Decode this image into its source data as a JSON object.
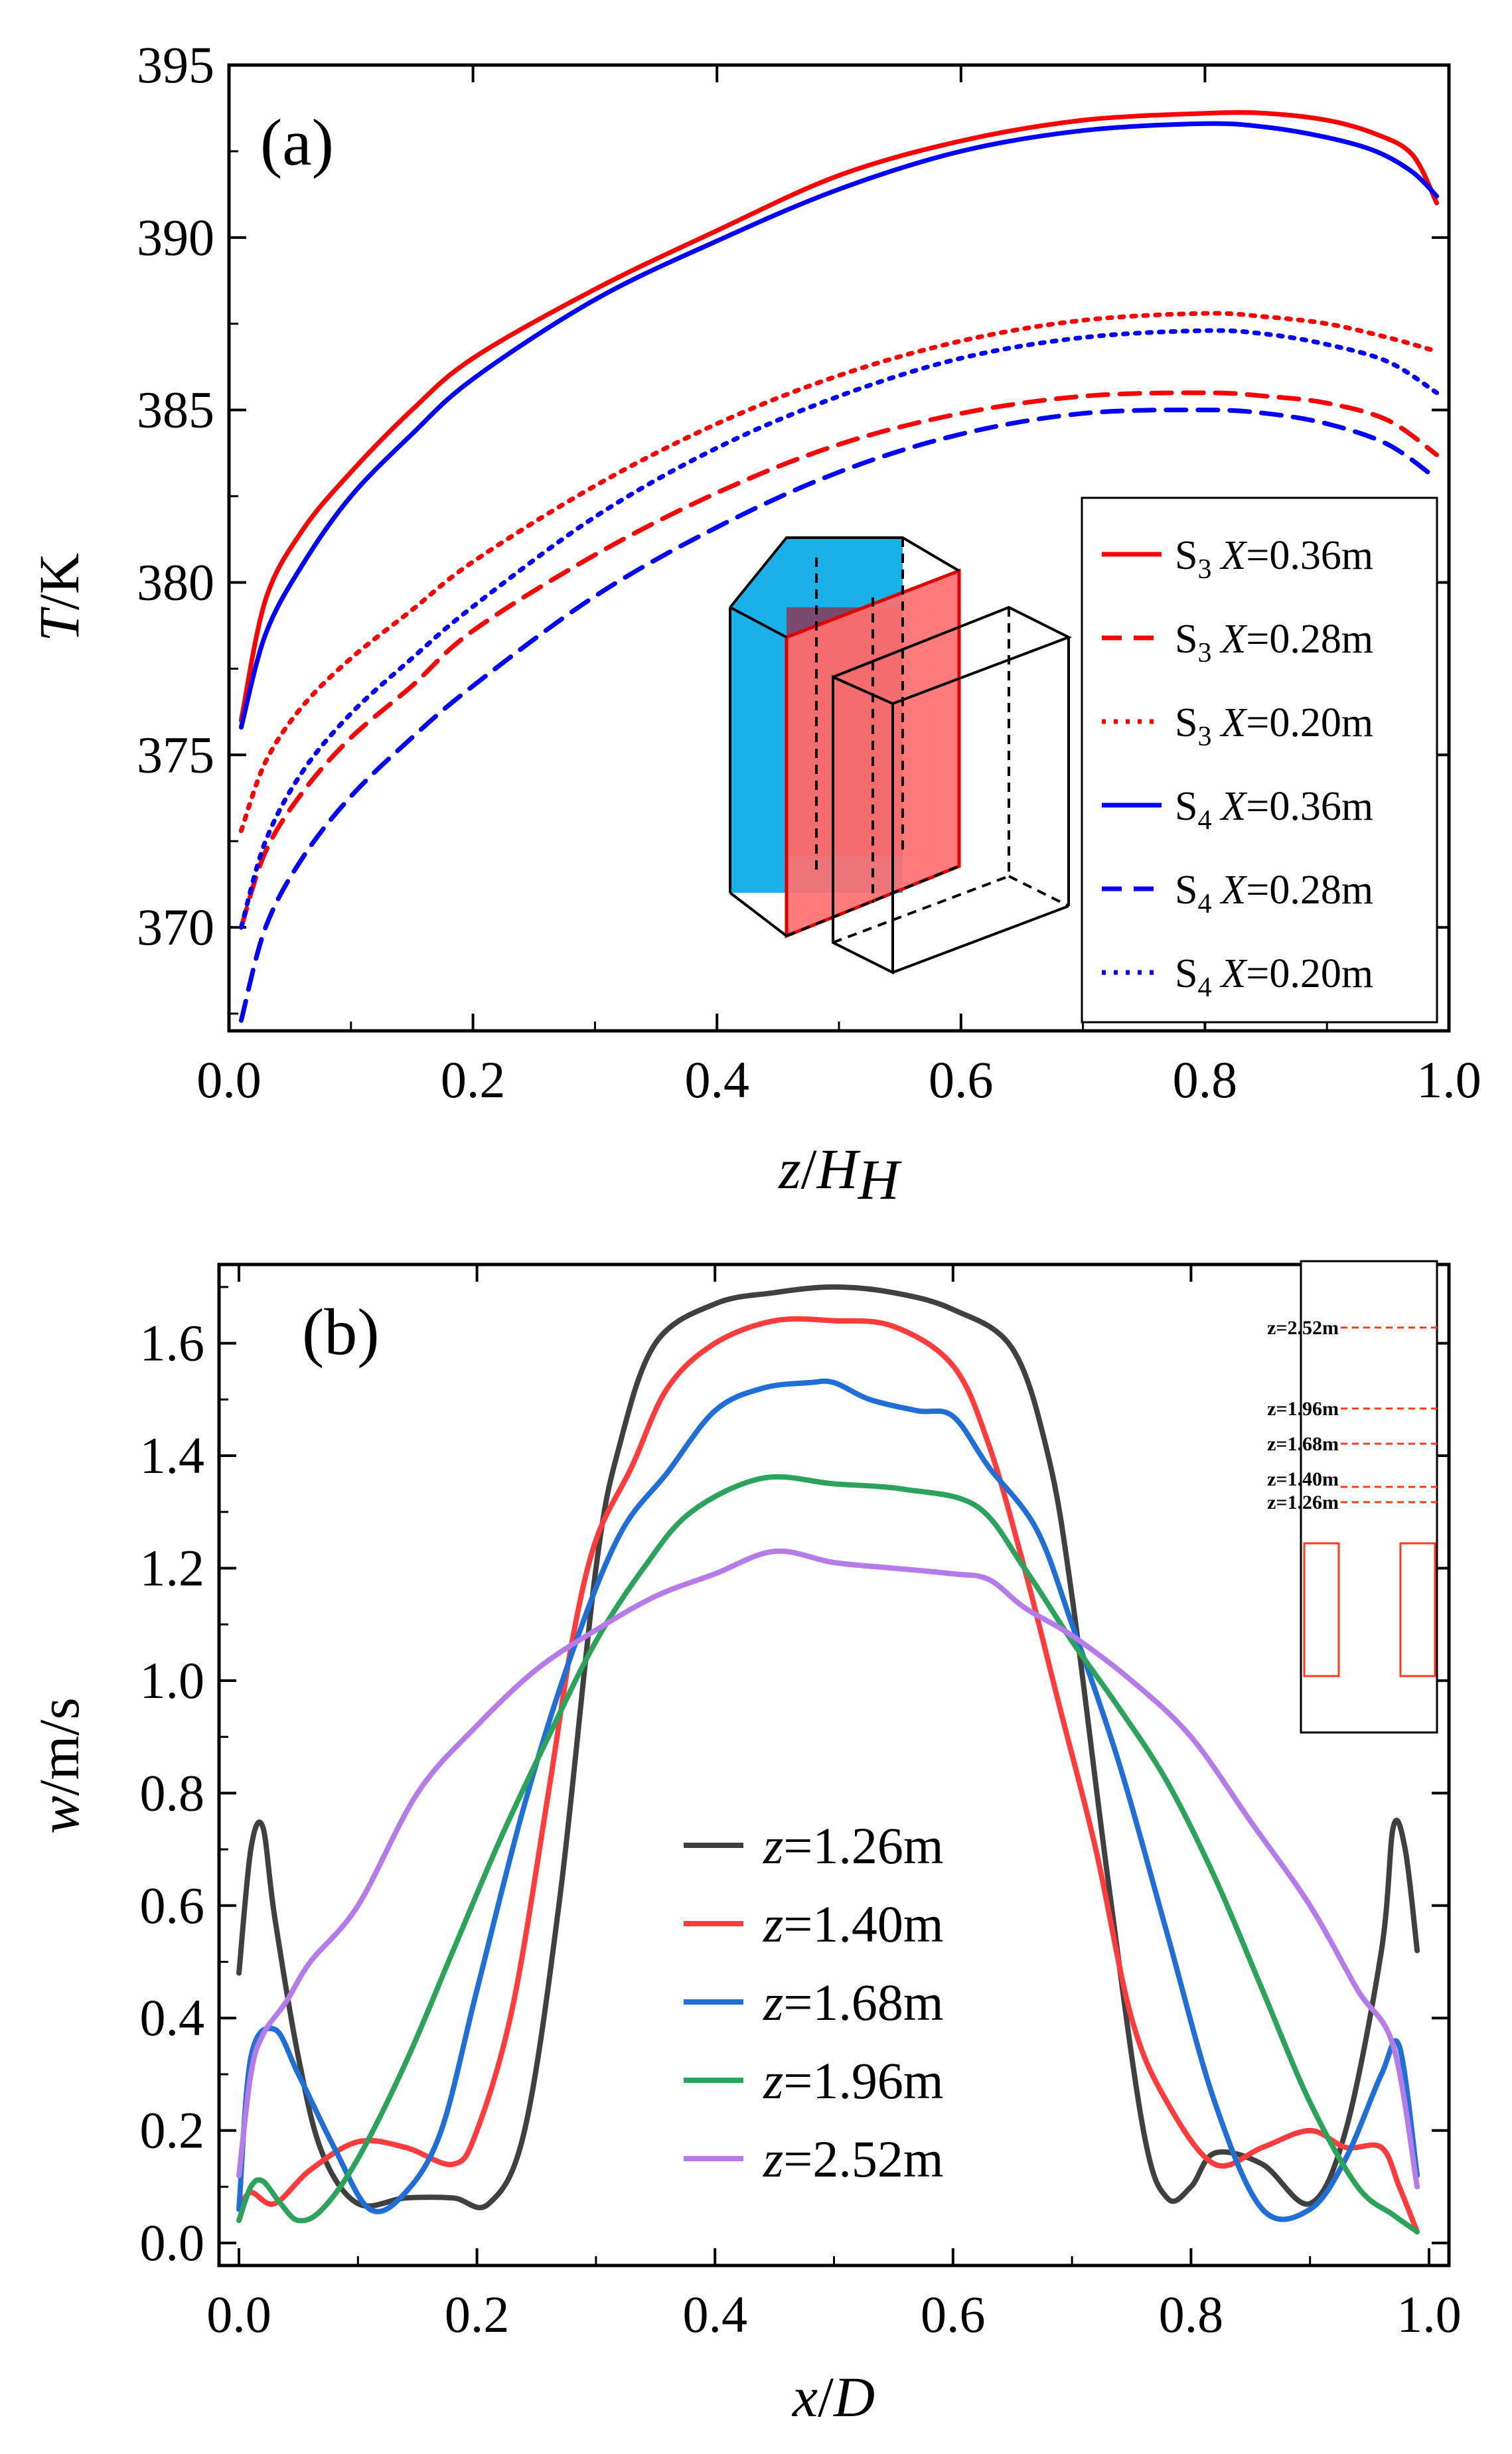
{
  "chart_data": [
    {
      "type": "line",
      "panel_label": "(a)",
      "xlabel": {
        "italic": "z",
        "text": "/",
        "italic2": "H",
        "sub": "H"
      },
      "ylabel": {
        "italic": "T",
        "text": "/K"
      },
      "xlim": [
        0,
        1.0
      ],
      "ylim": [
        367,
        395
      ],
      "xticks": [
        "0.0",
        "0.2",
        "0.4",
        "0.6",
        "0.8",
        "1.0"
      ],
      "yticks": [
        "370",
        "375",
        "380",
        "385",
        "390",
        "395"
      ],
      "legend_position": "bottom-right",
      "series": [
        {
          "name": "S3 X=0.36m",
          "label_base": "S",
          "label_sub": "3",
          "label_var": "X",
          "label_val": "=0.36m",
          "color": "#ff0000",
          "dash": "solid",
          "x": [
            0.01,
            0.03,
            0.06,
            0.1,
            0.15,
            0.2,
            0.3,
            0.4,
            0.5,
            0.6,
            0.7,
            0.8,
            0.85,
            0.9,
            0.94,
            0.97,
            0.99
          ],
          "y": [
            376.0,
            379.5,
            381.5,
            383.2,
            385.0,
            386.5,
            388.5,
            390.2,
            391.8,
            392.8,
            393.4,
            393.6,
            393.6,
            393.4,
            393.0,
            392.4,
            391.0
          ]
        },
        {
          "name": "S3 X=0.28m",
          "label_base": "S",
          "label_sub": "3",
          "label_var": "X",
          "label_val": "=0.28m",
          "color": "#ff0000",
          "dash": "dashed",
          "x": [
            0.01,
            0.03,
            0.06,
            0.1,
            0.15,
            0.2,
            0.3,
            0.4,
            0.5,
            0.6,
            0.7,
            0.8,
            0.85,
            0.9,
            0.95,
            0.99
          ],
          "y": [
            370.0,
            372.2,
            373.9,
            375.5,
            377.0,
            378.6,
            380.8,
            382.6,
            384.0,
            384.9,
            385.4,
            385.5,
            385.4,
            385.2,
            384.7,
            383.7
          ]
        },
        {
          "name": "S3 X=0.20m",
          "label_base": "S",
          "label_sub": "3",
          "label_var": "X",
          "label_val": "=0.20m",
          "color": "#ff0000",
          "dash": "dotted",
          "x": [
            0.01,
            0.03,
            0.06,
            0.1,
            0.15,
            0.2,
            0.3,
            0.4,
            0.5,
            0.6,
            0.7,
            0.8,
            0.85,
            0.9,
            0.95,
            0.99
          ],
          "y": [
            372.8,
            374.8,
            376.4,
            377.8,
            379.2,
            380.6,
            382.8,
            384.6,
            386.0,
            387.0,
            387.6,
            387.8,
            387.7,
            387.5,
            387.1,
            386.7
          ]
        },
        {
          "name": "S4 X=0.36m",
          "label_base": "S",
          "label_sub": "4",
          "label_var": "X",
          "label_val": "=0.36m",
          "color": "#0000ff",
          "dash": "solid",
          "x": [
            0.01,
            0.03,
            0.06,
            0.1,
            0.15,
            0.2,
            0.3,
            0.4,
            0.5,
            0.6,
            0.7,
            0.8,
            0.85,
            0.9,
            0.94,
            0.97,
            0.99
          ],
          "y": [
            375.8,
            378.5,
            380.5,
            382.5,
            384.3,
            385.9,
            388.2,
            389.9,
            391.4,
            392.5,
            393.1,
            393.3,
            393.2,
            392.9,
            392.5,
            391.9,
            391.2
          ]
        },
        {
          "name": "S4 X=0.28m",
          "label_base": "S",
          "label_sub": "4",
          "label_var": "X",
          "label_val": "=0.28m",
          "color": "#0000ff",
          "dash": "dashed",
          "x": [
            0.01,
            0.03,
            0.06,
            0.1,
            0.15,
            0.2,
            0.3,
            0.4,
            0.5,
            0.6,
            0.7,
            0.8,
            0.85,
            0.9,
            0.95,
            0.99
          ],
          "y": [
            367.3,
            370.0,
            372.0,
            373.8,
            375.5,
            377.0,
            379.6,
            381.6,
            383.2,
            384.3,
            384.9,
            385.0,
            384.9,
            384.6,
            384.0,
            383.0
          ]
        },
        {
          "name": "S4 X=0.20m",
          "label_base": "S",
          "label_sub": "4",
          "label_var": "X",
          "label_val": "=0.20m",
          "color": "#0000ff",
          "dash": "dotted",
          "x": [
            0.01,
            0.03,
            0.06,
            0.1,
            0.15,
            0.2,
            0.3,
            0.4,
            0.5,
            0.6,
            0.7,
            0.8,
            0.85,
            0.9,
            0.95,
            0.99
          ],
          "y": [
            370.0,
            372.5,
            374.5,
            376.2,
            377.8,
            379.3,
            381.9,
            383.9,
            385.4,
            386.5,
            387.1,
            387.3,
            387.2,
            386.9,
            386.4,
            385.5
          ]
        }
      ]
    },
    {
      "type": "line",
      "panel_label": "(b)",
      "xlabel": {
        "italic": "x",
        "text": "/",
        "italic2": "D"
      },
      "ylabel": {
        "italic": "w",
        "text": "/m/s"
      },
      "xlim": [
        0,
        1.0
      ],
      "ylim": [
        -0.04,
        1.74
      ],
      "xticks": [
        "0.0",
        "0.2",
        "0.4",
        "0.6",
        "0.8",
        "1.0"
      ],
      "yticks": [
        "0.0",
        "0.2",
        "0.4",
        "0.6",
        "0.8",
        "1.0",
        "1.2",
        "1.4",
        "1.6"
      ],
      "legend_position": "center-bottom",
      "inset_labels": [
        "z=2.52m",
        "z=1.96m",
        "z=1.68m",
        "z=1.40m",
        "z=1.26m"
      ],
      "series": [
        {
          "name": "z=1.26m",
          "label_var": "z",
          "label_val": "=1.26m",
          "color": "#404040",
          "x": [
            0.0,
            0.01,
            0.02,
            0.03,
            0.05,
            0.07,
            0.1,
            0.14,
            0.18,
            0.21,
            0.24,
            0.27,
            0.3,
            0.32,
            0.35,
            0.4,
            0.45,
            0.5,
            0.55,
            0.6,
            0.65,
            0.68,
            0.7,
            0.73,
            0.76,
            0.78,
            0.8,
            0.82,
            0.86,
            0.9,
            0.93,
            0.96,
            0.97,
            0.98,
            0.99
          ],
          "y": [
            0.48,
            0.7,
            0.74,
            0.58,
            0.33,
            0.16,
            0.07,
            0.08,
            0.08,
            0.07,
            0.2,
            0.62,
            1.2,
            1.42,
            1.6,
            1.67,
            1.69,
            1.7,
            1.69,
            1.66,
            1.59,
            1.4,
            1.15,
            0.65,
            0.2,
            0.08,
            0.1,
            0.16,
            0.14,
            0.07,
            0.2,
            0.52,
            0.74,
            0.7,
            0.52
          ]
        },
        {
          "name": "z=1.40m",
          "label_var": "z",
          "label_val": "=1.40m",
          "color": "#ff3b3b",
          "x": [
            0.0,
            0.01,
            0.03,
            0.06,
            0.1,
            0.14,
            0.18,
            0.2,
            0.23,
            0.26,
            0.28,
            0.3,
            0.33,
            0.36,
            0.4,
            0.45,
            0.5,
            0.55,
            0.6,
            0.63,
            0.66,
            0.69,
            0.72,
            0.75,
            0.78,
            0.82,
            0.86,
            0.9,
            0.93,
            0.96,
            0.975,
            0.99
          ],
          "y": [
            0.06,
            0.09,
            0.07,
            0.13,
            0.18,
            0.17,
            0.14,
            0.2,
            0.42,
            0.8,
            1.07,
            1.25,
            1.38,
            1.52,
            1.6,
            1.64,
            1.64,
            1.63,
            1.56,
            1.42,
            1.2,
            0.95,
            0.7,
            0.4,
            0.25,
            0.14,
            0.17,
            0.2,
            0.17,
            0.17,
            0.1,
            0.02
          ]
        },
        {
          "name": "z=1.68m",
          "label_var": "z",
          "label_val": "=1.68m",
          "color": "#1f6fd6",
          "x": [
            0.0,
            0.01,
            0.03,
            0.05,
            0.08,
            0.11,
            0.14,
            0.17,
            0.2,
            0.24,
            0.28,
            0.32,
            0.36,
            0.4,
            0.44,
            0.48,
            0.5,
            0.53,
            0.57,
            0.6,
            0.63,
            0.67,
            0.7,
            0.74,
            0.78,
            0.82,
            0.86,
            0.9,
            0.93,
            0.96,
            0.975,
            0.99
          ],
          "y": [
            0.06,
            0.33,
            0.38,
            0.3,
            0.17,
            0.06,
            0.09,
            0.2,
            0.45,
            0.78,
            1.05,
            1.26,
            1.37,
            1.48,
            1.52,
            1.53,
            1.53,
            1.5,
            1.48,
            1.47,
            1.38,
            1.27,
            1.1,
            0.85,
            0.55,
            0.25,
            0.06,
            0.06,
            0.15,
            0.3,
            0.35,
            0.12
          ]
        },
        {
          "name": "z=1.96m",
          "label_var": "z",
          "label_val": "=1.96m",
          "color": "#2ba35a",
          "x": [
            0.0,
            0.01,
            0.02,
            0.035,
            0.05,
            0.07,
            0.1,
            0.14,
            0.18,
            0.22,
            0.26,
            0.3,
            0.34,
            0.38,
            0.44,
            0.5,
            0.56,
            0.62,
            0.66,
            0.7,
            0.74,
            0.78,
            0.82,
            0.86,
            0.9,
            0.94,
            0.97,
            0.99
          ],
          "y": [
            0.04,
            0.1,
            0.11,
            0.07,
            0.04,
            0.06,
            0.15,
            0.32,
            0.52,
            0.72,
            0.9,
            1.07,
            1.2,
            1.3,
            1.36,
            1.35,
            1.34,
            1.31,
            1.2,
            1.07,
            0.95,
            0.82,
            0.65,
            0.45,
            0.25,
            0.1,
            0.05,
            0.02
          ]
        },
        {
          "name": "z=2.52m",
          "label_var": "z",
          "label_val": "=2.52m",
          "color": "#b57be8",
          "x": [
            0.0,
            0.01,
            0.02,
            0.04,
            0.06,
            0.1,
            0.15,
            0.2,
            0.25,
            0.3,
            0.35,
            0.4,
            0.45,
            0.5,
            0.55,
            0.6,
            0.63,
            0.66,
            0.7,
            0.75,
            0.8,
            0.85,
            0.9,
            0.94,
            0.97,
            0.99
          ],
          "y": [
            0.12,
            0.3,
            0.37,
            0.43,
            0.5,
            0.6,
            0.8,
            0.92,
            1.02,
            1.09,
            1.15,
            1.19,
            1.23,
            1.21,
            1.2,
            1.19,
            1.18,
            1.13,
            1.08,
            1.0,
            0.9,
            0.75,
            0.6,
            0.45,
            0.35,
            0.1
          ]
        }
      ]
    }
  ]
}
